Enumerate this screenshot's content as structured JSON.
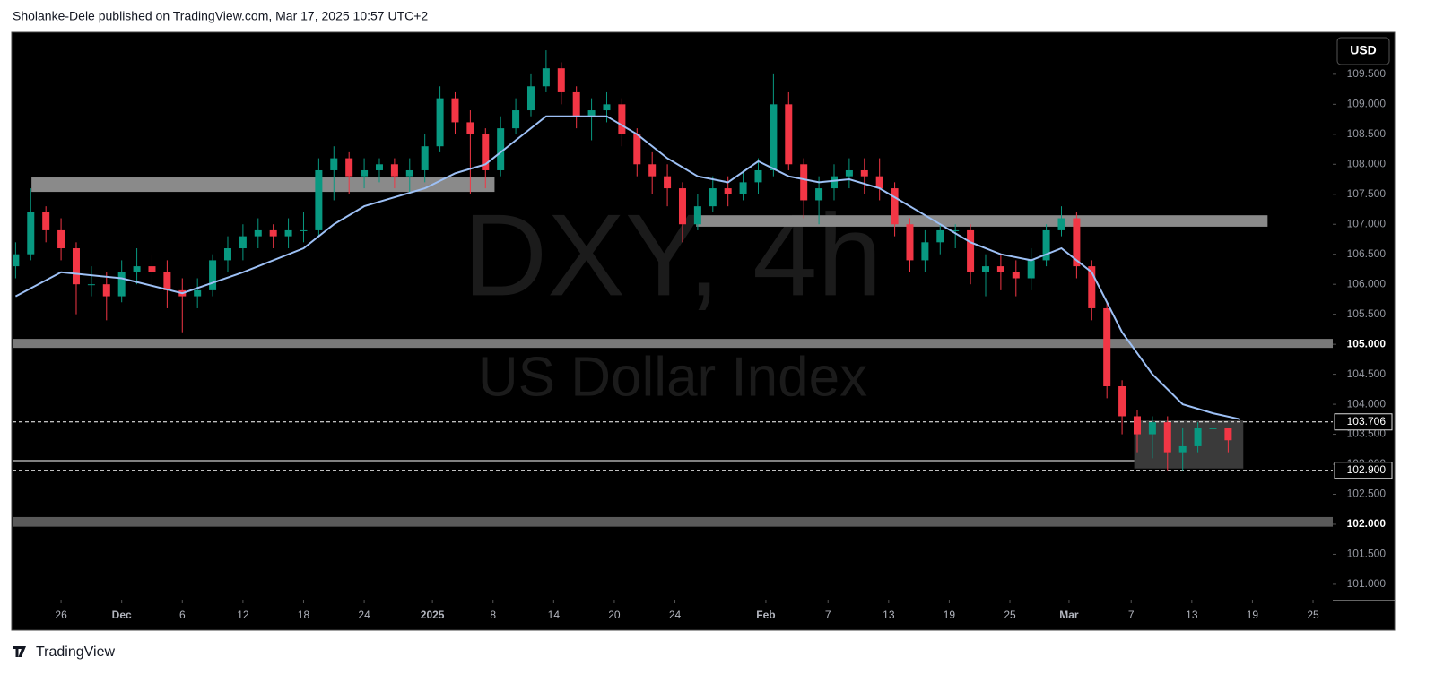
{
  "header": "Sholanke-Dele published on TradingView.com, Mar 17, 2025 10:57 UTC+2",
  "footer": "TradingView",
  "chart_data": {
    "type": "candlestick",
    "watermark": "DXY, 4h",
    "watermark_subtitle": "US Dollar Index",
    "currency": "USD",
    "up_color": "#089981",
    "down_color": "#f23645",
    "x": [
      -3,
      -2,
      -1,
      0,
      1,
      2,
      3,
      4,
      5,
      6,
      7,
      8,
      9,
      10,
      11,
      12,
      13,
      14,
      15,
      16,
      17,
      18,
      19,
      20,
      21,
      22,
      23,
      24,
      25,
      26,
      27,
      28,
      29,
      30,
      31,
      32,
      33,
      34,
      35,
      36,
      37,
      38,
      39,
      40,
      41,
      42,
      43,
      44,
      45,
      46,
      47,
      48,
      49,
      50,
      51,
      52,
      53,
      54,
      55,
      56,
      57,
      58,
      59,
      60,
      61,
      62,
      63,
      64,
      65,
      66,
      67,
      68,
      69,
      70,
      71,
      72,
      73,
      74,
      75,
      76,
      77
    ],
    "open": [
      106.3,
      106.5,
      107.2,
      106.9,
      106.6,
      106.0,
      106.0,
      105.8,
      106.2,
      106.3,
      106.2,
      105.9,
      105.8,
      105.9,
      106.4,
      106.6,
      106.8,
      106.9,
      106.8,
      106.9,
      106.9,
      107.9,
      108.1,
      107.8,
      107.9,
      108.0,
      107.8,
      107.9,
      108.3,
      109.1,
      108.7,
      108.5,
      107.9,
      108.6,
      108.9,
      109.3,
      109.6,
      109.2,
      108.8,
      108.9,
      109.0,
      108.5,
      108.0,
      107.8,
      107.6,
      107.0,
      107.3,
      107.6,
      107.5,
      107.7,
      107.9,
      109.0,
      108.0,
      107.4,
      107.6,
      107.8,
      107.9,
      107.8,
      107.6,
      107.0,
      106.4,
      106.7,
      106.9,
      106.9,
      106.2,
      106.3,
      106.2,
      106.1,
      106.4,
      106.9,
      107.1,
      106.3,
      105.6,
      104.3,
      103.8,
      103.5,
      103.7,
      103.2,
      103.3,
      103.6,
      103.6
    ],
    "high": [
      106.7,
      107.6,
      107.3,
      107.1,
      106.7,
      106.3,
      106.2,
      106.4,
      106.6,
      106.5,
      106.4,
      106.1,
      106.1,
      106.5,
      106.8,
      107.0,
      107.1,
      107.0,
      107.1,
      107.2,
      108.1,
      108.3,
      108.2,
      108.1,
      108.1,
      108.1,
      108.1,
      108.5,
      109.3,
      109.2,
      108.9,
      108.6,
      108.8,
      109.1,
      109.5,
      109.9,
      109.7,
      109.3,
      109.1,
      109.2,
      109.1,
      108.6,
      108.2,
      108.0,
      107.7,
      107.5,
      107.8,
      107.8,
      107.9,
      108.1,
      109.5,
      109.2,
      108.1,
      107.8,
      108.0,
      108.1,
      108.1,
      108.1,
      107.7,
      107.1,
      106.9,
      107.0,
      107.0,
      107.0,
      106.5,
      106.5,
      106.4,
      106.6,
      107.0,
      107.3,
      107.2,
      106.4,
      105.7,
      104.4,
      103.9,
      103.8,
      103.8,
      103.6,
      103.7,
      103.7,
      103.6
    ],
    "low": [
      106.1,
      106.4,
      106.7,
      106.4,
      105.5,
      105.8,
      105.4,
      105.7,
      106.0,
      105.9,
      105.6,
      105.2,
      105.6,
      105.8,
      106.2,
      106.4,
      106.6,
      106.6,
      106.6,
      106.7,
      106.8,
      107.4,
      107.5,
      107.6,
      107.7,
      107.6,
      107.5,
      107.7,
      108.2,
      108.5,
      107.5,
      107.6,
      107.8,
      108.5,
      108.8,
      109.2,
      109.0,
      108.6,
      108.4,
      108.7,
      108.3,
      107.8,
      107.5,
      107.3,
      106.7,
      106.9,
      107.2,
      107.3,
      107.4,
      107.5,
      107.8,
      107.9,
      107.1,
      107.0,
      107.4,
      107.6,
      107.5,
      107.4,
      106.8,
      106.2,
      106.2,
      106.5,
      106.6,
      106.0,
      105.8,
      105.9,
      105.8,
      105.9,
      106.3,
      106.8,
      106.1,
      105.4,
      104.1,
      103.5,
      103.2,
      103.1,
      102.9,
      102.9,
      103.2,
      103.2,
      103.2
    ],
    "close": [
      106.5,
      107.2,
      106.9,
      106.6,
      106.0,
      106.0,
      105.8,
      106.2,
      106.3,
      106.2,
      105.9,
      105.8,
      105.9,
      106.4,
      106.6,
      106.8,
      106.9,
      106.8,
      106.9,
      106.9,
      107.9,
      108.1,
      107.8,
      107.9,
      108.0,
      107.8,
      107.9,
      108.3,
      109.1,
      108.7,
      108.5,
      107.9,
      108.6,
      108.9,
      109.3,
      109.6,
      109.2,
      108.8,
      108.9,
      109.0,
      108.5,
      108.0,
      107.8,
      107.6,
      107.0,
      107.3,
      107.6,
      107.5,
      107.7,
      107.9,
      109.0,
      108.0,
      107.4,
      107.6,
      107.8,
      107.9,
      107.8,
      107.6,
      107.0,
      106.4,
      106.7,
      106.9,
      106.9,
      106.2,
      106.3,
      106.2,
      106.1,
      106.4,
      106.9,
      107.1,
      106.3,
      105.6,
      104.3,
      103.8,
      103.5,
      103.7,
      103.2,
      103.3,
      103.6,
      103.6,
      103.4
    ],
    "ma_color": "#9dc0f5",
    "ma_x": [
      -3,
      0,
      4,
      8,
      12,
      16,
      18,
      20,
      24,
      26,
      28,
      30,
      32,
      34,
      36,
      38,
      40,
      42,
      44,
      46,
      48,
      50,
      52,
      54,
      56,
      58,
      60,
      62,
      64,
      66,
      68,
      70,
      72,
      74,
      76,
      77.8
    ],
    "ma_values": [
      105.8,
      106.2,
      106.1,
      105.85,
      106.2,
      106.6,
      107.0,
      107.3,
      107.6,
      107.85,
      108.0,
      108.4,
      108.8,
      108.8,
      108.8,
      108.5,
      108.1,
      107.8,
      107.7,
      108.05,
      107.8,
      107.7,
      107.75,
      107.6,
      107.3,
      107.0,
      106.7,
      106.5,
      106.4,
      106.6,
      106.2,
      105.2,
      104.5,
      104.0,
      103.85,
      103.75
    ],
    "zones": [
      {
        "low": 107.54,
        "high": 107.78,
        "from": -1.95,
        "to": 28.6,
        "color": "#8a8a8a"
      },
      {
        "low": 106.96,
        "high": 107.15,
        "from": 41.9,
        "to": 79.6,
        "color": "#8a8a8a"
      },
      {
        "low": 104.94,
        "high": 105.09,
        "color": "#7a7a7a"
      },
      {
        "low": 101.96,
        "high": 102.12,
        "color": "#5a5a5a"
      },
      {
        "low": 102.93,
        "high": 103.73,
        "from": 70.8,
        "to": 78.0,
        "color": "#3a3a3a"
      }
    ],
    "levels": [
      {
        "value": 103.706,
        "label": "103.706"
      },
      {
        "value": 102.9,
        "label": "102.900"
      }
    ],
    "support_line": {
      "value": 103.06,
      "to": 70.8
    },
    "xlim": [
      -3.2,
      83.9
    ],
    "ylim": [
      100.73,
      110.2
    ],
    "xticks": [
      {
        "value": 0,
        "label": "26"
      },
      {
        "value": 4,
        "label": "Dec"
      },
      {
        "value": 8,
        "label": "6"
      },
      {
        "value": 12,
        "label": "12"
      },
      {
        "value": 16,
        "label": "18"
      },
      {
        "value": 20,
        "label": "24"
      },
      {
        "value": 24.5,
        "label": "2025"
      },
      {
        "value": 28.5,
        "label": "8"
      },
      {
        "value": 32.5,
        "label": "14"
      },
      {
        "value": 36.5,
        "label": "20"
      },
      {
        "value": 40.5,
        "label": "24"
      },
      {
        "value": 46.5,
        "label": "Feb"
      },
      {
        "value": 50.6,
        "label": "7"
      },
      {
        "value": 54.6,
        "label": "13"
      },
      {
        "value": 58.6,
        "label": "19"
      },
      {
        "value": 62.6,
        "label": "25"
      },
      {
        "value": 66.5,
        "label": "Mar"
      },
      {
        "value": 70.6,
        "label": "7"
      },
      {
        "value": 74.6,
        "label": "13"
      },
      {
        "value": 78.6,
        "label": "19"
      },
      {
        "value": 82.6,
        "label": "25"
      }
    ],
    "yticks": [
      {
        "value": 101,
        "label": "101.000"
      },
      {
        "value": 101.5,
        "label": "101.500"
      },
      {
        "value": 102,
        "label": "102.000",
        "bold": true
      },
      {
        "value": 102.5,
        "label": "102.500"
      },
      {
        "value": 103,
        "label": "103.000"
      },
      {
        "value": 103.5,
        "label": "103.500"
      },
      {
        "value": 104,
        "label": "104.000"
      },
      {
        "value": 104.5,
        "label": "104.500"
      },
      {
        "value": 105,
        "label": "105.000",
        "bold": true
      },
      {
        "value": 105.5,
        "label": "105.500"
      },
      {
        "value": 106,
        "label": "106.000"
      },
      {
        "value": 106.5,
        "label": "106.500"
      },
      {
        "value": 107,
        "label": "107.000"
      },
      {
        "value": 107.5,
        "label": "107.500"
      },
      {
        "value": 108,
        "label": "108.000"
      },
      {
        "value": 108.5,
        "label": "108.500"
      },
      {
        "value": 109,
        "label": "109.000"
      },
      {
        "value": 109.5,
        "label": "109.500"
      }
    ]
  }
}
